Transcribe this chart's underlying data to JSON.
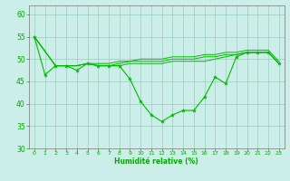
{
  "bg_color": "#cceee8",
  "grid_color": "#99ccbb",
  "line_color": "#00bb00",
  "xlabel": "Humidité relative (%)",
  "ylim": [
    30,
    62
  ],
  "xlim": [
    -0.5,
    23.5
  ],
  "yticks": [
    30,
    35,
    40,
    45,
    50,
    55,
    60
  ],
  "xticks": [
    0,
    1,
    2,
    3,
    4,
    5,
    6,
    7,
    8,
    9,
    10,
    11,
    12,
    13,
    14,
    15,
    16,
    17,
    18,
    19,
    20,
    21,
    22,
    23
  ],
  "series_main": {
    "x": [
      0,
      1,
      2,
      3,
      4,
      5,
      6,
      7,
      8,
      9,
      10,
      11,
      12,
      13,
      14,
      15,
      16,
      17,
      18,
      19,
      20,
      21,
      22,
      23
    ],
    "y": [
      55,
      46.5,
      48.5,
      48.5,
      47.5,
      49,
      48.5,
      48.5,
      48.5,
      45.5,
      40.5,
      37.5,
      36,
      37.5,
      38.5,
      38.5,
      41.5,
      46,
      44.5,
      50.5,
      51.5,
      51.5,
      51.5,
      49
    ]
  },
  "series_a": {
    "x": [
      0,
      2,
      3,
      4,
      5,
      6,
      7,
      8,
      9,
      10,
      11,
      12,
      13,
      14,
      15,
      16,
      17,
      18,
      19,
      20,
      21,
      22,
      23
    ],
    "y": [
      55,
      48.5,
      48.5,
      48.5,
      49,
      48.5,
      48.5,
      48.5,
      49,
      49,
      49,
      49,
      49.5,
      49.5,
      49.5,
      49.5,
      50,
      50.5,
      51,
      51.5,
      51.5,
      51.5,
      49
    ]
  },
  "series_b": {
    "x": [
      0,
      2,
      3,
      4,
      5,
      6,
      7,
      8,
      9,
      10,
      11,
      12,
      13,
      14,
      15,
      16,
      17,
      18,
      19,
      20,
      21,
      22,
      23
    ],
    "y": [
      55,
      48.5,
      48.5,
      48.5,
      49,
      48.5,
      48.5,
      49,
      49.5,
      49.5,
      49.5,
      49.5,
      50,
      50,
      50,
      50.5,
      50.5,
      51,
      51,
      51.5,
      51.5,
      51.5,
      49
    ]
  },
  "series_c": {
    "x": [
      0,
      2,
      3,
      4,
      5,
      6,
      7,
      8,
      9,
      10,
      11,
      12,
      13,
      14,
      15,
      16,
      17,
      18,
      19,
      20,
      21,
      22,
      23
    ],
    "y": [
      55,
      48.5,
      48.5,
      48.5,
      49,
      49,
      49,
      49.5,
      49.5,
      50,
      50,
      50,
      50.5,
      50.5,
      50.5,
      51,
      51,
      51.5,
      51.5,
      52,
      52,
      52,
      49.5
    ]
  }
}
